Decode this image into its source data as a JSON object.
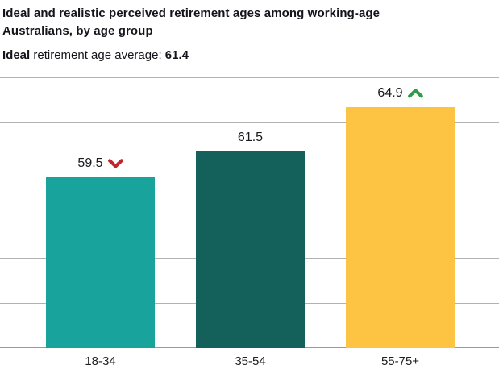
{
  "header": {
    "title_lines": [
      "Ideal and realistic perceived retirement ages among working-age",
      "Australians, by age group"
    ],
    "subtitle": {
      "bold_prefix": "Ideal",
      "text": "retirement age average:",
      "bold_value": "61.4"
    }
  },
  "chart_data": {
    "type": "bar",
    "title": "Ideal and realistic perceived retirement ages among working-age Australians, by age group",
    "subtitle": "Ideal retirement age average: 61.4",
    "average_value": 61.4,
    "categories": [
      "18-34",
      "35-54",
      "55-75+"
    ],
    "values": [
      59.5,
      61.5,
      64.9
    ],
    "labels": [
      "59.5",
      "61.5",
      "64.9"
    ],
    "markers": [
      "down",
      "none",
      "up"
    ],
    "bar_colors": [
      "#18a49c",
      "#14605a",
      "#fdc444"
    ],
    "marker_colors": {
      "down": "#c0272d",
      "up": "#2e9e44"
    },
    "ylim": [
      46.4,
      67.2
    ],
    "xlabel": "",
    "ylabel": "",
    "grid": "horizontal",
    "gridline_color": "#b2b2b2",
    "baseline_color": "#9a9a9a",
    "legend": "none"
  }
}
